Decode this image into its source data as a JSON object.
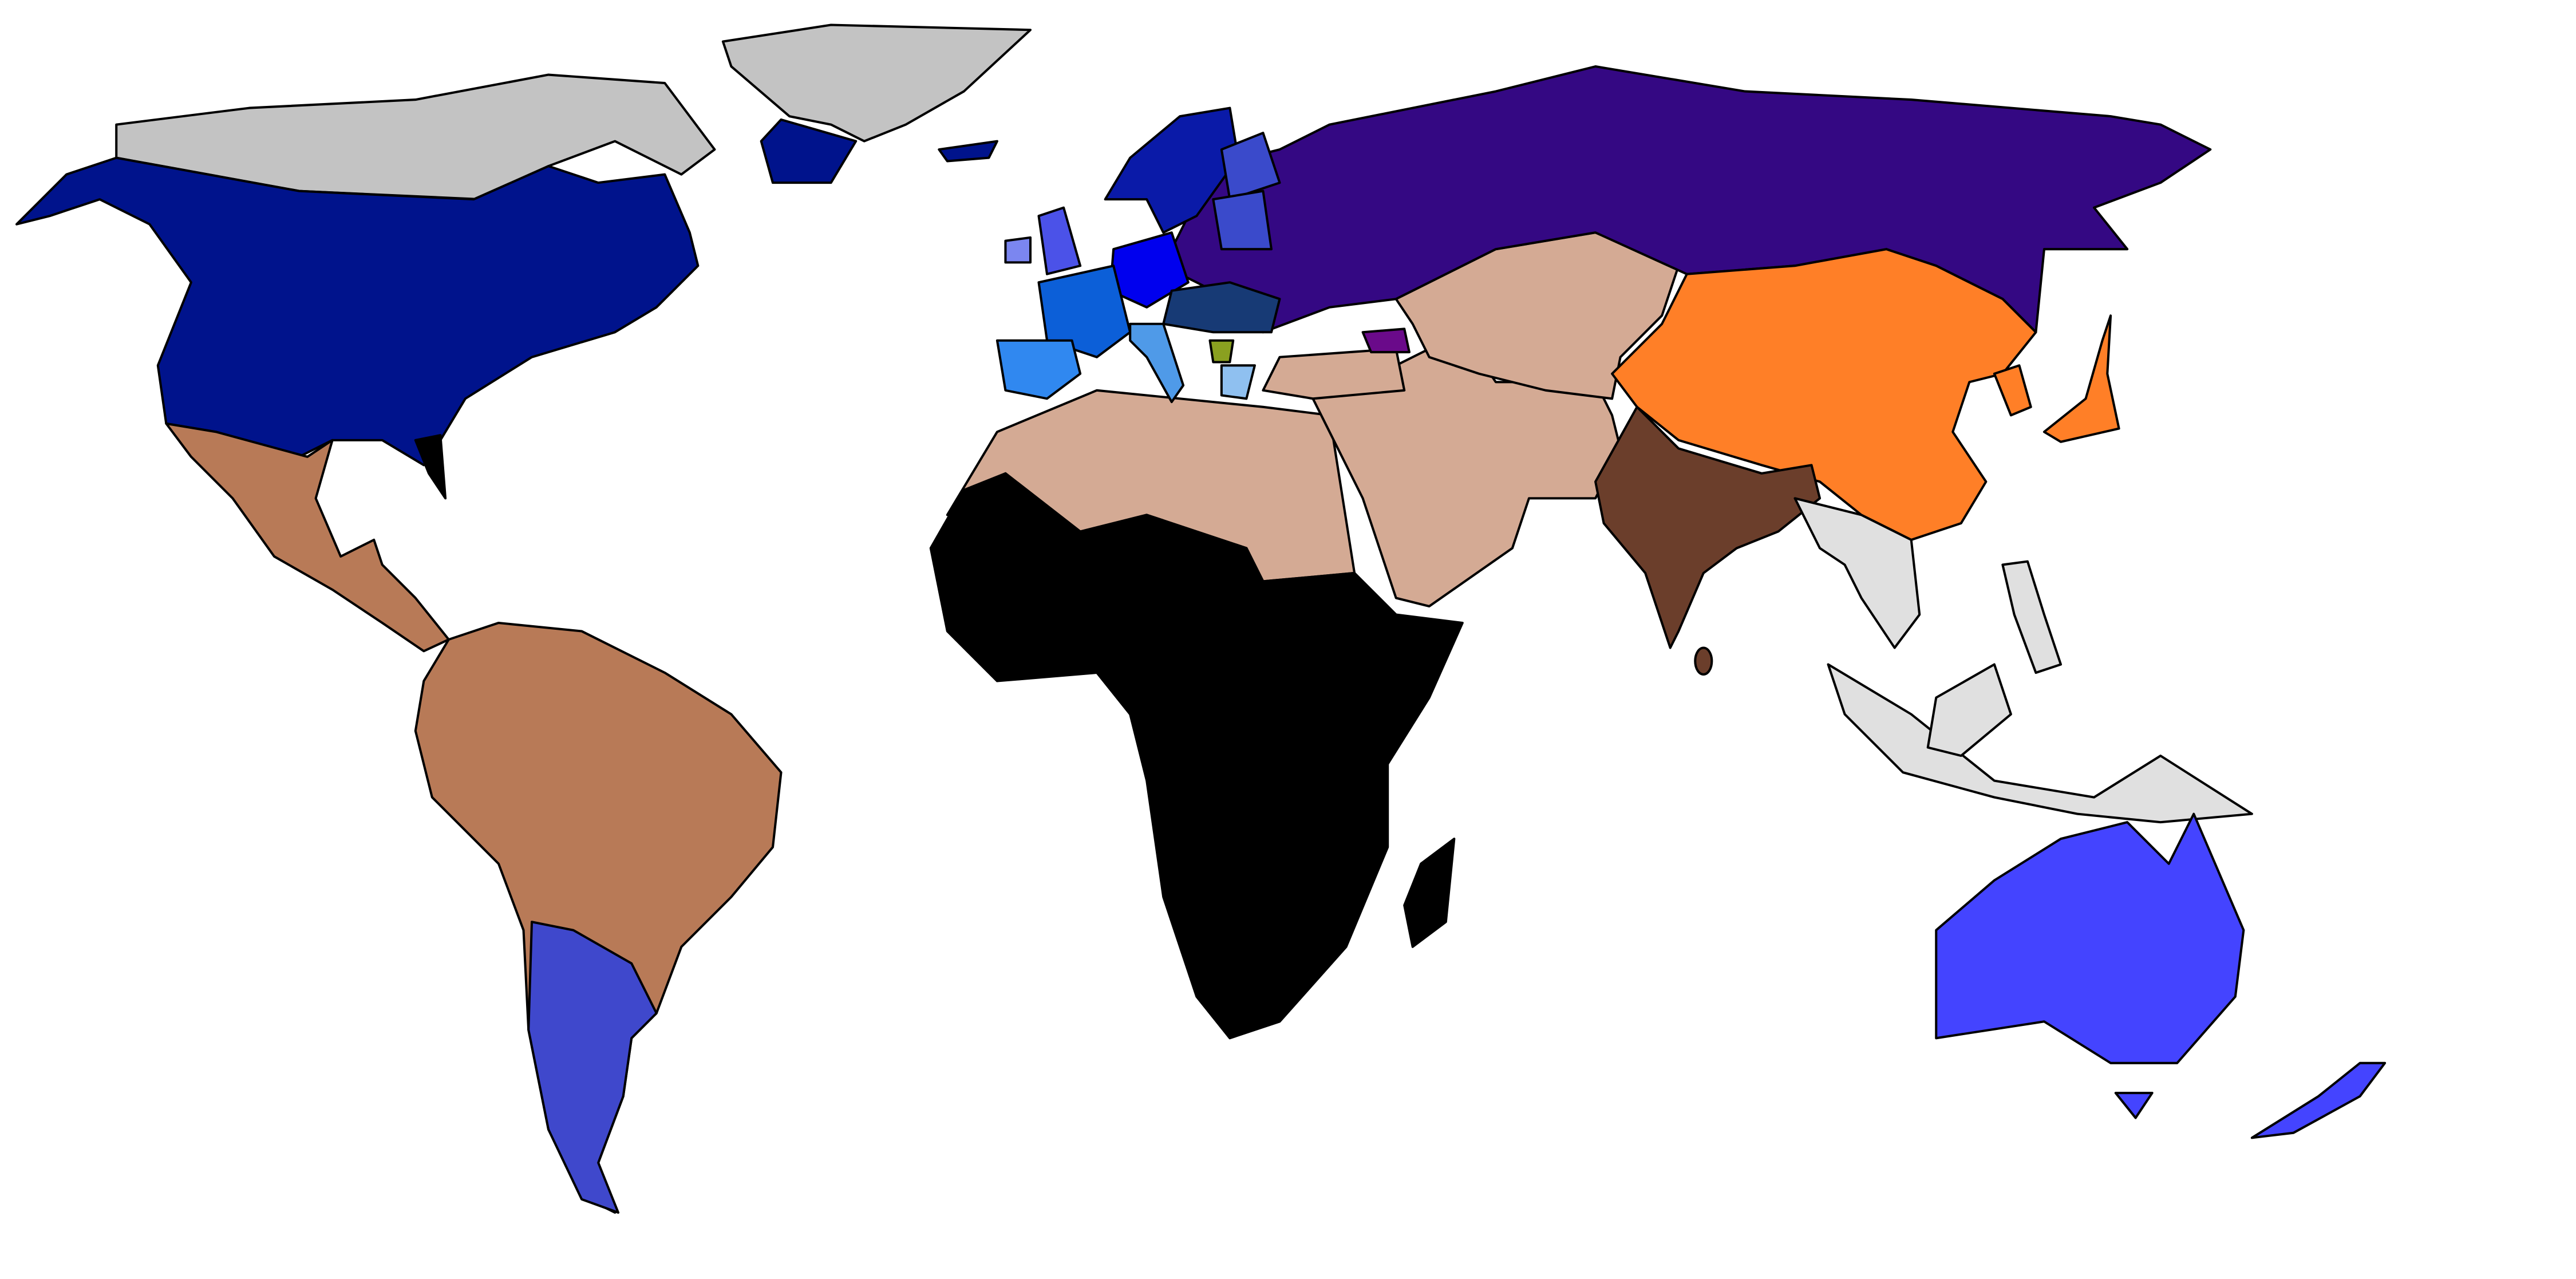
{
  "map": {
    "background": "#ffffff",
    "border_color": "#000000",
    "fills": {
      "arctic": "#c3c3c3",
      "north_america": "#00138c",
      "florida": "#000000",
      "latin_america": "#b87a57",
      "argentina": "#3f48cc",
      "africa": "#000000",
      "middle_east_central_asia": "#d4aa94",
      "india": "#6b3e2b",
      "china_east_asia": "#ff7f27",
      "russia": "#340883",
      "scandinavia": "#0a1aa8",
      "finland_baltics": "#3a4acb",
      "uk": "#4b52e8",
      "ireland": "#7b86f0",
      "germany": "#0000ee",
      "france": "#0c5fd8",
      "spain": "#3088f0",
      "italy": "#4f9ae8",
      "eastern_europe": "#173a75",
      "balkans": "#8aa020",
      "greece": "#8fc0f0",
      "caucasus": "#6a0a8a",
      "southeast_asia": "#e0e0e0",
      "oceania": "#4444ff",
      "greenland_coast": "#00138c",
      "iceland": "#00138c"
    }
  }
}
